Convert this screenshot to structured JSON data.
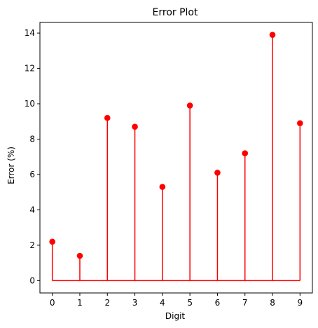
{
  "chart_data": {
    "type": "stem",
    "title": "Error Plot",
    "xlabel": "Digit",
    "ylabel": "Error (%)",
    "x": [
      0,
      1,
      2,
      3,
      4,
      5,
      6,
      7,
      8,
      9
    ],
    "values": [
      2.2,
      1.4,
      9.2,
      8.7,
      5.3,
      9.9,
      6.1,
      7.2,
      13.9,
      8.9
    ],
    "xlim": [
      -0.45,
      9.45
    ],
    "ylim": [
      -0.7,
      14.6
    ],
    "xticks": [
      "0",
      "1",
      "2",
      "3",
      "4",
      "5",
      "6",
      "7",
      "8",
      "9"
    ],
    "yticks": [
      "0",
      "2",
      "4",
      "6",
      "8",
      "10",
      "12",
      "14"
    ],
    "grid": false,
    "color": "#ff0000",
    "marker": "circle",
    "baseline": 0
  }
}
